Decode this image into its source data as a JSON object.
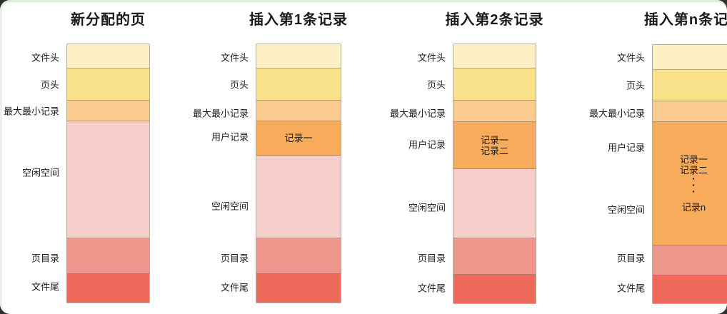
{
  "palette": {
    "fh": "#FCEFC3",
    "ph": "#F9E189",
    "mm": "#FACA8F",
    "ur": "#F8AB5B",
    "fs": "#F5CECA",
    "pd": "#EF968C",
    "ft": "#EE6B5B"
  },
  "text_color": "#1B1B1B",
  "panels": [
    {
      "title": "新分配的页",
      "labels": {
        "file_header": "文件头",
        "page_header": "页头",
        "min_max": "最大最小记录",
        "free_space": "空闲空间",
        "page_directory": "页目录",
        "file_trailer": "文件尾"
      }
    },
    {
      "title": "插入第1条记录",
      "labels": {
        "file_header": "文件头",
        "page_header": "页头",
        "min_max": "最大最小记录",
        "user_records": "用户记录",
        "free_space": "空闲空间",
        "page_directory": "页目录",
        "file_trailer": "文件尾"
      },
      "records": [
        "记录一"
      ]
    },
    {
      "title": "插入第2条记录",
      "labels": {
        "file_header": "文件头",
        "page_header": "页头",
        "min_max": "最大最小记录",
        "user_records": "用户记录",
        "free_space": "空闲空间",
        "page_directory": "页目录",
        "file_trailer": "文件尾"
      },
      "records": [
        "记录一",
        "记录二"
      ]
    },
    {
      "title": "插入第n条记录",
      "labels": {
        "file_header": "文件头",
        "page_header": "页头",
        "min_max": "最大最小记录",
        "user_records": "用户记录",
        "free_space": "空闲空间",
        "page_directory": "页目录",
        "file_trailer": "文件尾"
      },
      "records": [
        "记录一",
        "记录二",
        "·",
        "·",
        "·",
        "记录n"
      ]
    }
  ]
}
